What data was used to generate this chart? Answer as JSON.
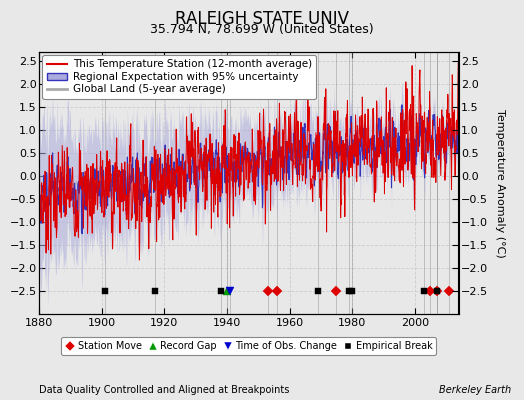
{
  "title": "RALEIGH STATE UNIV",
  "subtitle": "35.794 N, 78.699 W (United States)",
  "ylabel": "Temperature Anomaly (°C)",
  "xlabel_footer": "Data Quality Controlled and Aligned at Breakpoints",
  "footer_right": "Berkeley Earth",
  "xlim": [
    1880,
    2014
  ],
  "ylim": [
    -3.0,
    2.7
  ],
  "yticks": [
    -2.5,
    -2,
    -1.5,
    -1,
    -0.5,
    0,
    0.5,
    1,
    1.5,
    2,
    2.5
  ],
  "xticks": [
    1880,
    1900,
    1920,
    1940,
    1960,
    1980,
    2000
  ],
  "bg_color": "#e8e8e8",
  "plot_bg_color": "#e8e8e8",
  "station_move_years": [
    1953,
    1956,
    1975,
    2005,
    2007,
    2011
  ],
  "record_gap_years": [
    1940
  ],
  "obs_change_years": [
    1941
  ],
  "empirical_break_years": [
    1901,
    1917,
    1938,
    1969,
    1979,
    1980,
    2003,
    2007
  ],
  "marker_y": -2.5,
  "station_color": "#dd0000",
  "regional_color": "#3333bb",
  "regional_band_color": "#aaaadd",
  "global_color": "#aaaaaa",
  "grid_color": "#cccccc",
  "title_fontsize": 12,
  "subtitle_fontsize": 9,
  "tick_fontsize": 8,
  "legend_fontsize": 7.5
}
